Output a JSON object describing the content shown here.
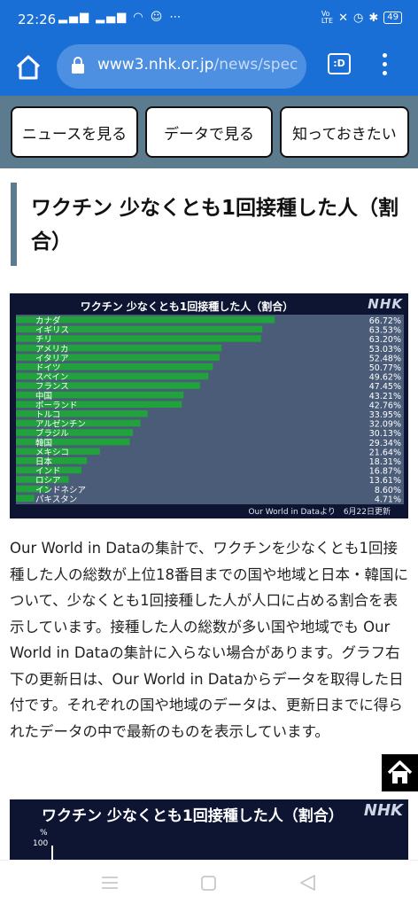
{
  "status_bar": {
    "time": "22:26",
    "battery": "49"
  },
  "browser": {
    "url_host": "www3.nhk.or.jp",
    "url_path": "/news/spec",
    "tab_label": ":D"
  },
  "nav_buttons": [
    "ニュースを見る",
    "データで見る",
    "知っておきたい"
  ],
  "heading": "ワクチン 少なくとも1回接種した人（割合）",
  "chart_data": [
    {
      "type": "bar",
      "title": "ワクチン 少なくとも1回接種した人（割合）",
      "brand": "NHK",
      "source": "Our World in Dataより　6月22日更新",
      "categories": [
        "カナダ",
        "イギリス",
        "チリ",
        "アメリカ",
        "イタリア",
        "ドイツ",
        "スペイン",
        "フランス",
        "中国",
        "ポーランド",
        "トルコ",
        "アルゼンチン",
        "ブラジル",
        "韓国",
        "メキシコ",
        "日本",
        "インド",
        "ロシア",
        "インドネシア",
        "パキスタン"
      ],
      "values": [
        66.72,
        63.53,
        63.2,
        53.03,
        52.48,
        50.77,
        49.62,
        47.45,
        43.21,
        42.76,
        33.95,
        32.09,
        30.13,
        29.34,
        21.64,
        18.31,
        16.87,
        13.61,
        8.6,
        4.71
      ],
      "labels": [
        "66.72%",
        "63.53%",
        "63.20%",
        "53.03%",
        "52.48%",
        "50.77%",
        "49.62%",
        "47.45%",
        "43.21%",
        "42.76%",
        "33.95%",
        "32.09%",
        "30.13%",
        "29.34%",
        "21.64%",
        "18.31%",
        "16.87%",
        "13.61%",
        "8.60%",
        "4.71%"
      ],
      "xlim": [
        0,
        100
      ],
      "bar_color": "#1fa33a"
    },
    {
      "type": "line",
      "title": "ワクチン 少なくとも1回接種した人（割合）",
      "brand": "NHK",
      "ylabel": "%",
      "yticks": [
        "100"
      ]
    }
  ],
  "paragraph": "Our World in Dataの集計で、ワクチンを少なくとも1回接種した人の総数が上位18番目までの国や地域と日本・韓国について、少なくとも1回接種した人が人口に占める割合を表示しています。接種した人の総数が多い国や地域でも Our World in Dataの集計に入らない場合があります。グラフ右下の更新日は、Our World in Dataからデータを取得した日付です。それぞれの国や地域のデータは、更新日までに得られたデータの中で最新のものを表示しています。",
  "icons": {
    "home": "home-icon",
    "lock": "lock-icon",
    "menu": "more-vert-icon",
    "scroll_top": "home-icon"
  }
}
